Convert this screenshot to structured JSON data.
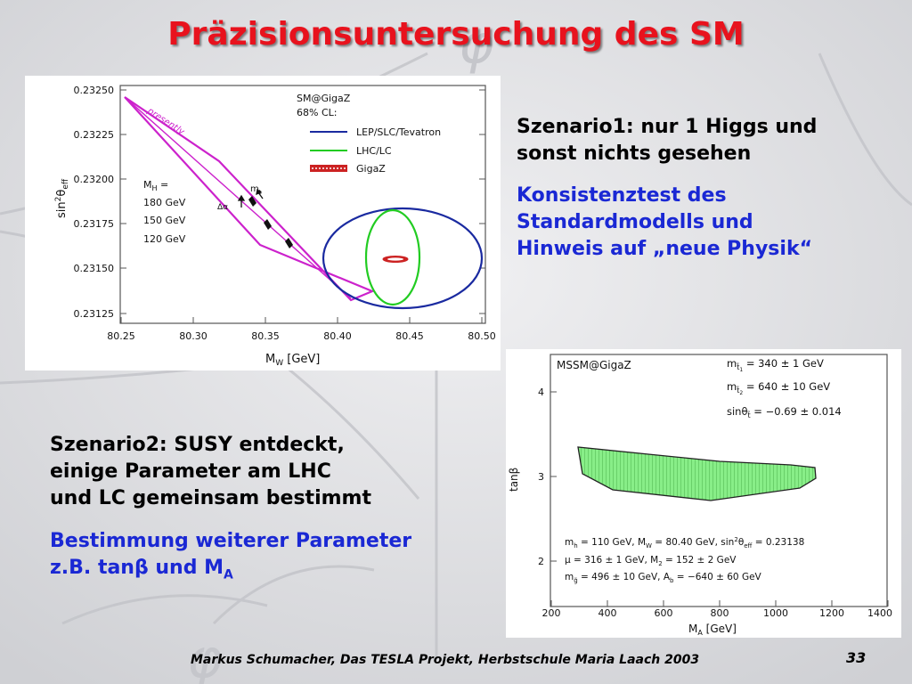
{
  "slide": {
    "title": "Präzisionsuntersuchung des SM",
    "scenario1": {
      "heading_line1": "Szenario1: nur 1 Higgs und",
      "heading_line2": "sonst nichts gesehen",
      "conclusion_line1": "Konsistenztest des",
      "conclusion_line2": "Standardmodells und",
      "conclusion_line3": "Hinweis auf „neue Physik“"
    },
    "scenario2": {
      "heading_line1": "Szenario2: SUSY entdeckt,",
      "heading_line2": "einige Parameter am LHC",
      "heading_line3": "und LC gemeinsam bestimmt",
      "conclusion_line1": "Bestimmung weiterer Parameter",
      "conclusion_line2_prefix": "z.B. tan",
      "conclusion_beta": "β",
      "conclusion_and": " und M",
      "conclusion_sub": "A"
    },
    "footer": "Markus Schumacher, Das TESLA Projekt, Herbstschule Maria Laach 2003",
    "page_number": "33"
  },
  "plot1": {
    "yticks": [
      "0.23250",
      "0.23225",
      "0.23200",
      "0.23175",
      "0.23150",
      "0.23125"
    ],
    "xticks": [
      "80.25",
      "80.30",
      "80.35",
      "80.40",
      "80.45",
      "80.50"
    ],
    "xlabel_main": "M",
    "xlabel_sub": "W",
    "xlabel_unit": " [GeV]",
    "ylabel_main": "sin",
    "ylabel_sup": "2",
    "ylabel_theta": "θ",
    "ylabel_sub": "eff",
    "legend_title1": "SM@GigaZ",
    "legend_title2": "68% CL:",
    "legend_items": [
      "LEP/SLC/Tevatron",
      "LHC/LC",
      "GigaZ"
    ],
    "mh_label": "M",
    "mh_sub": "H",
    "mh_eq": " =",
    "mh_values": [
      "180 GeV",
      "150 GeV",
      "120 GeV"
    ],
    "presently": "presently",
    "mt_label": "m",
    "mt_sub": "t",
    "dalpha_label": "Δα"
  },
  "plot2": {
    "yticks": [
      "4",
      "3",
      "2"
    ],
    "xticks": [
      "200",
      "400",
      "600",
      "800",
      "1000",
      "1200",
      "1400"
    ],
    "xlabel_main": "M",
    "xlabel_sub": "A",
    "xlabel_unit": " [GeV]",
    "ylabel": "tanβ",
    "title": "MSSM@GigaZ",
    "param1_m": "m",
    "param1_sub": "t̃",
    "param1_subsub": "1",
    "param1_val": " = 340 ± 1 GeV",
    "param2_m": "m",
    "param2_sub": "t̃",
    "param2_subsub": "2",
    "param2_val": " = 640 ± 10 GeV",
    "param3_sin": "sinθ",
    "param3_sub": "t̃",
    "param3_val": " = −0.69 ± 0.014",
    "fixed_line1": "m",
    "fixed_line1_sub": "h",
    "fixed_line1_rest": " = 110 GeV, M",
    "fixed_line1_sub2": "W",
    "fixed_line1_rest2": " = 80.40 GeV, sin",
    "fixed_line1_sup": "2",
    "fixed_line1_theta": "θ",
    "fixed_line1_sub3": "eff",
    "fixed_line1_rest3": " = 0.23138",
    "fixed_line2": "μ = 316 ± 1 GeV, M",
    "fixed_line2_sub": "2",
    "fixed_line2_rest": " = 152 ± 2 GeV",
    "fixed_line3": "m",
    "fixed_line3_sub": "g̃",
    "fixed_line3_rest": " = 496 ± 10 GeV, A",
    "fixed_line3_sub2": "b",
    "fixed_line3_rest2": " = −640 ± 60 GeV"
  },
  "colors": {
    "title": "#e8121d",
    "highlight_text": "#1a28d4",
    "lep_band": "#cc22cc",
    "lhc_ellipse": "#22cc22",
    "blue_ellipse": "#1a2aa0",
    "gigaz": "#cc2222",
    "mssm_region": "#88ee88"
  }
}
